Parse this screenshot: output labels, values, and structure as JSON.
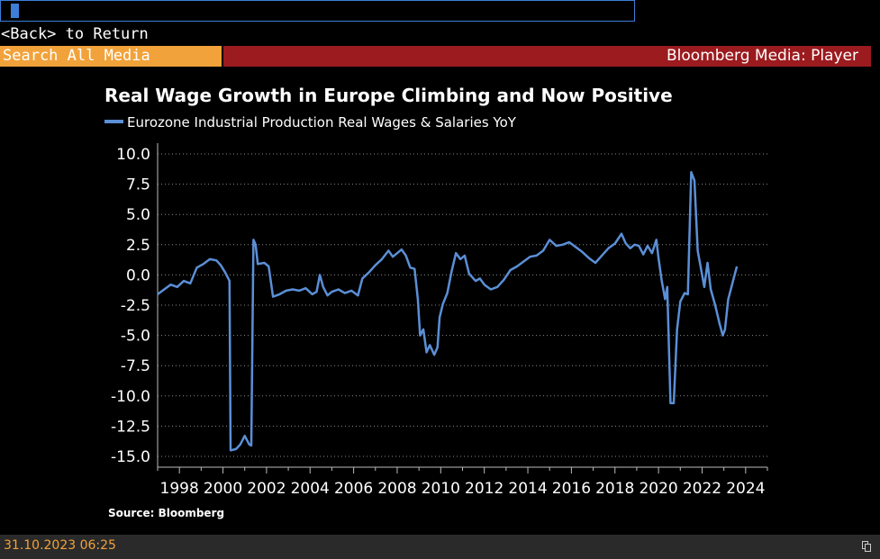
{
  "app": {
    "back_text": "<Back> to Return",
    "search_placeholder": "Search All Media",
    "header_title": "Bloomberg Media: Player",
    "status_timestamp": "31.10.2023 06:25",
    "accent_orange": "#f2a23a",
    "header_red": "#9b1b1f",
    "command_blue": "#3d7fd8"
  },
  "chart_data": {
    "type": "line",
    "title": "Real Wage Growth in Europe Climbing and Now Positive",
    "source": "Source: Bloomberg",
    "xlabel": "",
    "ylabel": "",
    "xlim": [
      1997.0,
      2025.0
    ],
    "ylim": [
      -15.0,
      10.0
    ],
    "y_ticks": [
      "10.0",
      "7.5",
      "5.0",
      "2.5",
      "0.0",
      "-2.5",
      "-5.0",
      "-7.5",
      "-10.0",
      "-12.5",
      "-15.0"
    ],
    "x_ticks": [
      "1998",
      "2000",
      "2002",
      "2004",
      "2006",
      "2008",
      "2010",
      "2012",
      "2014",
      "2016",
      "2018",
      "2020",
      "2022",
      "2024"
    ],
    "grid": "horizontal dotted",
    "legend_placement": "top-left",
    "series": [
      {
        "name": "Eurozone Industrial Production Real Wages & Salaries YoY",
        "color": "#5b8fd6",
        "points": [
          [
            1997.0,
            -1.6
          ],
          [
            1997.3,
            -1.2
          ],
          [
            1997.6,
            -0.8
          ],
          [
            1997.9,
            -1.0
          ],
          [
            1998.2,
            -0.5
          ],
          [
            1998.5,
            -0.7
          ],
          [
            1998.8,
            0.6
          ],
          [
            1999.1,
            0.9
          ],
          [
            1999.4,
            1.3
          ],
          [
            1999.7,
            1.2
          ],
          [
            1999.9,
            0.8
          ],
          [
            2000.1,
            0.2
          ],
          [
            2000.3,
            -0.5
          ],
          [
            2000.35,
            -14.5
          ],
          [
            2000.6,
            -14.4
          ],
          [
            2000.8,
            -14.0
          ],
          [
            2001.0,
            -13.3
          ],
          [
            2001.2,
            -14.0
          ],
          [
            2001.3,
            -14.1
          ],
          [
            2001.4,
            2.9
          ],
          [
            2001.5,
            2.5
          ],
          [
            2001.6,
            0.9
          ],
          [
            2001.9,
            1.0
          ],
          [
            2002.1,
            0.7
          ],
          [
            2002.3,
            -1.8
          ],
          [
            2002.6,
            -1.6
          ],
          [
            2002.9,
            -1.3
          ],
          [
            2003.2,
            -1.2
          ],
          [
            2003.5,
            -1.3
          ],
          [
            2003.8,
            -1.1
          ],
          [
            2004.1,
            -1.6
          ],
          [
            2004.3,
            -1.4
          ],
          [
            2004.45,
            0.0
          ],
          [
            2004.6,
            -1.0
          ],
          [
            2004.8,
            -1.7
          ],
          [
            2005.0,
            -1.4
          ],
          [
            2005.3,
            -1.2
          ],
          [
            2005.6,
            -1.5
          ],
          [
            2005.9,
            -1.3
          ],
          [
            2006.2,
            -1.7
          ],
          [
            2006.4,
            -0.3
          ],
          [
            2006.7,
            0.2
          ],
          [
            2007.0,
            0.8
          ],
          [
            2007.3,
            1.3
          ],
          [
            2007.6,
            2.0
          ],
          [
            2007.8,
            1.5
          ],
          [
            2008.0,
            1.8
          ],
          [
            2008.2,
            2.1
          ],
          [
            2008.4,
            1.6
          ],
          [
            2008.6,
            0.6
          ],
          [
            2008.8,
            0.5
          ],
          [
            2008.95,
            -2.0
          ],
          [
            2009.05,
            -5.0
          ],
          [
            2009.2,
            -4.5
          ],
          [
            2009.35,
            -6.4
          ],
          [
            2009.5,
            -5.8
          ],
          [
            2009.7,
            -6.6
          ],
          [
            2009.85,
            -6.0
          ],
          [
            2009.95,
            -3.5
          ],
          [
            2010.1,
            -2.4
          ],
          [
            2010.3,
            -1.5
          ],
          [
            2010.5,
            0.3
          ],
          [
            2010.7,
            1.8
          ],
          [
            2010.9,
            1.3
          ],
          [
            2011.1,
            1.6
          ],
          [
            2011.3,
            0.1
          ],
          [
            2011.6,
            -0.5
          ],
          [
            2011.8,
            -0.3
          ],
          [
            2012.0,
            -0.8
          ],
          [
            2012.3,
            -1.2
          ],
          [
            2012.6,
            -1.0
          ],
          [
            2012.9,
            -0.4
          ],
          [
            2013.2,
            0.4
          ],
          [
            2013.5,
            0.7
          ],
          [
            2013.8,
            1.1
          ],
          [
            2014.1,
            1.5
          ],
          [
            2014.4,
            1.6
          ],
          [
            2014.7,
            2.0
          ],
          [
            2015.0,
            2.9
          ],
          [
            2015.3,
            2.4
          ],
          [
            2015.6,
            2.5
          ],
          [
            2015.9,
            2.7
          ],
          [
            2016.2,
            2.3
          ],
          [
            2016.5,
            1.9
          ],
          [
            2016.8,
            1.4
          ],
          [
            2017.1,
            1.0
          ],
          [
            2017.4,
            1.6
          ],
          [
            2017.7,
            2.2
          ],
          [
            2018.0,
            2.6
          ],
          [
            2018.3,
            3.4
          ],
          [
            2018.5,
            2.6
          ],
          [
            2018.7,
            2.2
          ],
          [
            2018.9,
            2.5
          ],
          [
            2019.1,
            2.4
          ],
          [
            2019.3,
            1.7
          ],
          [
            2019.5,
            2.4
          ],
          [
            2019.7,
            1.8
          ],
          [
            2019.9,
            2.9
          ],
          [
            2020.0,
            1.4
          ],
          [
            2020.15,
            -0.5
          ],
          [
            2020.3,
            -2.0
          ],
          [
            2020.4,
            -1.0
          ],
          [
            2020.55,
            -10.6
          ],
          [
            2020.7,
            -10.6
          ],
          [
            2020.85,
            -4.5
          ],
          [
            2021.0,
            -2.2
          ],
          [
            2021.2,
            -1.5
          ],
          [
            2021.35,
            -1.6
          ],
          [
            2021.5,
            8.5
          ],
          [
            2021.65,
            7.8
          ],
          [
            2021.8,
            2.0
          ],
          [
            2021.95,
            0.5
          ],
          [
            2022.1,
            -1.0
          ],
          [
            2022.25,
            1.0
          ],
          [
            2022.4,
            -1.2
          ],
          [
            2022.6,
            -2.5
          ],
          [
            2022.8,
            -4.0
          ],
          [
            2022.95,
            -5.0
          ],
          [
            2023.05,
            -4.5
          ],
          [
            2023.2,
            -2.0
          ],
          [
            2023.35,
            -1.0
          ],
          [
            2023.45,
            -0.3
          ],
          [
            2023.6,
            0.7
          ]
        ]
      }
    ]
  }
}
